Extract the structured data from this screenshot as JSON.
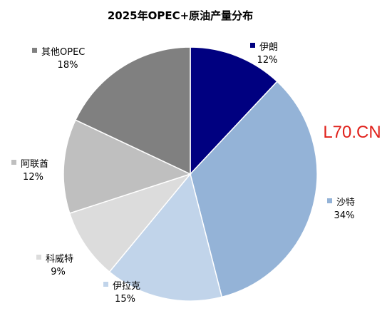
{
  "chart_data": {
    "type": "pie",
    "title": "2025年OPEC+原油产量分布",
    "unit": "%",
    "slices": [
      {
        "label": "伊朗",
        "value": 12,
        "value_label": "12%",
        "color": "#000080"
      },
      {
        "label": "沙特",
        "value": 34,
        "value_label": "34%",
        "color": "#94b3d7"
      },
      {
        "label": "伊拉克",
        "value": 15,
        "value_label": "15%",
        "color": "#c1d4ea"
      },
      {
        "label": "科威特",
        "value": 9,
        "value_label": "9%",
        "color": "#dcdcdc"
      },
      {
        "label": "阿联酋",
        "value": 12,
        "value_label": "12%",
        "color": "#bfbfbf"
      },
      {
        "label": "其他OPEC",
        "value": 18,
        "value_label": "18%",
        "color": "#808080"
      }
    ],
    "start_angle_deg": 0,
    "direction": "clockwise",
    "legend": "labels beside slices"
  },
  "watermark": "L70.CN"
}
